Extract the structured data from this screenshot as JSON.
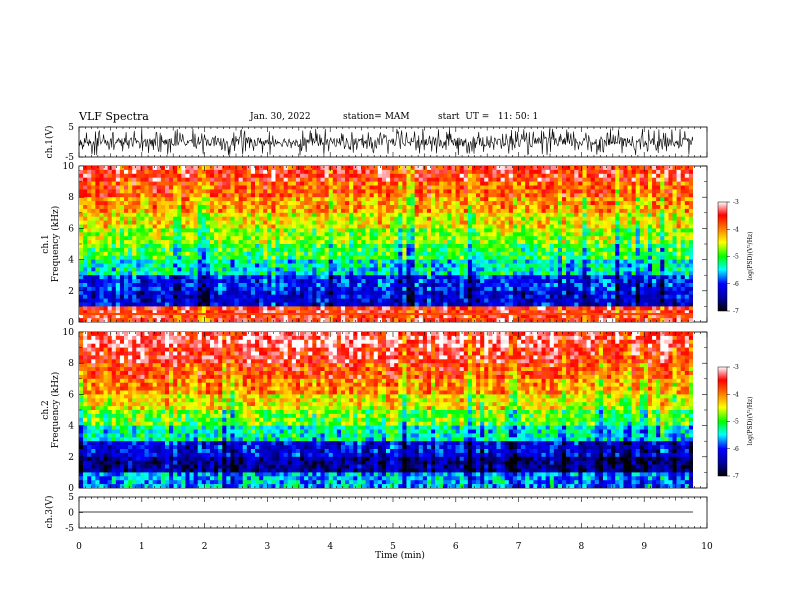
{
  "header": {
    "title": "VLF Spectra",
    "date": "Jan. 30, 2022",
    "station": "station= MAM",
    "start_ut": "start  UT =   11: 50: 1"
  },
  "chart_data": [
    {
      "type": "line",
      "panel": "ch1-waveform",
      "ylabel": "ch.1(V)",
      "ylim": [
        -5,
        5
      ],
      "y_ticks": [
        "5",
        "-5"
      ],
      "description_values": "dense impulsive waveform spanning roughly -4 to 4 V"
    },
    {
      "type": "heatmap",
      "panel": "ch1-spectrogram",
      "ylabel": "ch.1\nFrequency (kHz)",
      "ylim": [
        0,
        10
      ],
      "y_ticks": [
        "0",
        "2",
        "4",
        "6",
        "8",
        "10"
      ],
      "xlim": [
        0,
        10
      ],
      "colorbar": {
        "label": "log(PSD)(V²/Hz)",
        "ticks": [
          "-3",
          "-4",
          "-5",
          "-6",
          "-7"
        ],
        "range": [
          -7,
          -3
        ]
      },
      "band_levels_by_freq_khz": [
        {
          "f": 0.5,
          "level": -3.5
        },
        {
          "f": 1.5,
          "level": -6.2
        },
        {
          "f": 2.5,
          "level": -6.0
        },
        {
          "f": 3.5,
          "level": -5.4
        },
        {
          "f": 4.5,
          "level": -5.0
        },
        {
          "f": 5.5,
          "level": -4.7
        },
        {
          "f": 6.5,
          "level": -4.4
        },
        {
          "f": 7.5,
          "level": -4.1
        },
        {
          "f": 8.5,
          "level": -3.8
        },
        {
          "f": 9.5,
          "level": -3.5
        }
      ]
    },
    {
      "type": "heatmap",
      "panel": "ch2-spectrogram",
      "ylabel": "ch.2\nFrequency (kHz)",
      "ylim": [
        0,
        10
      ],
      "y_ticks": [
        "0",
        "2",
        "4",
        "6",
        "8",
        "10"
      ],
      "xlim": [
        0,
        10
      ],
      "colorbar": {
        "label": "log(PSD)(V²/Hz)",
        "ticks": [
          "-3",
          "-4",
          "-5",
          "-6",
          "-7"
        ],
        "range": [
          -7,
          -3
        ]
      },
      "band_levels_by_freq_khz": [
        {
          "f": 0.5,
          "level": -5.6
        },
        {
          "f": 1.5,
          "level": -6.5
        },
        {
          "f": 2.5,
          "level": -6.1
        },
        {
          "f": 3.5,
          "level": -5.3
        },
        {
          "f": 4.5,
          "level": -4.8
        },
        {
          "f": 5.5,
          "level": -4.4
        },
        {
          "f": 6.5,
          "level": -4.0
        },
        {
          "f": 7.5,
          "level": -3.7
        },
        {
          "f": 8.5,
          "level": -3.4
        },
        {
          "f": 9.5,
          "level": -3.2
        }
      ]
    },
    {
      "type": "line",
      "panel": "ch3-waveform",
      "ylabel": "ch.3(V)",
      "ylim": [
        -5,
        5
      ],
      "y_ticks": [
        "5",
        "0",
        "-5"
      ],
      "values": [
        0,
        0
      ]
    }
  ],
  "xaxis": {
    "label": "Time  (min)",
    "ticks": [
      "0",
      "1",
      "2",
      "3",
      "4",
      "5",
      "6",
      "7",
      "8",
      "9",
      "10"
    ],
    "xlim": [
      0,
      10
    ]
  }
}
